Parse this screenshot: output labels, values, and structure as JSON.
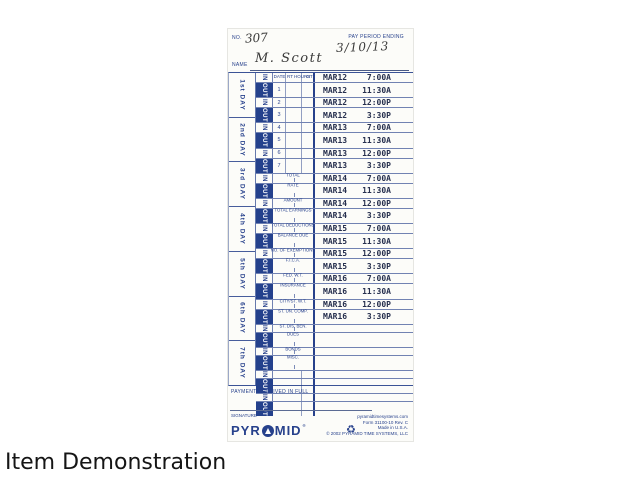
{
  "page": {
    "caption": "Item Demonstration"
  },
  "card": {
    "colors": {
      "print_blue": "#27418c",
      "out_block_blue": "#24418c",
      "stamp_ink": "#262f4e",
      "handwriting": "#3a3a3a",
      "card_background": "#fcfcf9"
    },
    "header": {
      "no_label": "NO.",
      "no_value": "307",
      "pay_period_label": "PAY PERIOD ENDING",
      "pay_period_value": "3/10/13",
      "name_label": "NAME",
      "name_value": "M. Scott"
    },
    "table": {
      "in_label": "IN",
      "out_label": "OUT",
      "column_headers": [
        "DATE",
        "RT",
        "HOURS",
        "OT"
      ],
      "day_labels": [
        "1st DAY",
        "2nd DAY",
        "3rd DAY",
        "4th DAY",
        "5th DAY",
        "6th DAY",
        "7th DAY"
      ],
      "rows": [
        {
          "io": "IN",
          "mid_type": "header",
          "mid": "",
          "stamp_date": "MAR12",
          "stamp_time": "7:00A"
        },
        {
          "io": "OUT",
          "mid_type": "num",
          "mid": "1",
          "stamp_date": "MAR12",
          "stamp_time": "11:30A"
        },
        {
          "io": "IN",
          "mid_type": "num",
          "mid": "2",
          "stamp_date": "MAR12",
          "stamp_time": "12:00P"
        },
        {
          "io": "OUT",
          "mid_type": "num",
          "mid": "3",
          "stamp_date": "MAR12",
          "stamp_time": "3:30P"
        },
        {
          "io": "IN",
          "mid_type": "num",
          "mid": "4",
          "stamp_date": "MAR13",
          "stamp_time": "7:00A"
        },
        {
          "io": "OUT",
          "mid_type": "num",
          "mid": "5",
          "stamp_date": "MAR13",
          "stamp_time": "11:30A"
        },
        {
          "io": "IN",
          "mid_type": "num",
          "mid": "6",
          "stamp_date": "MAR13",
          "stamp_time": "12:00P"
        },
        {
          "io": "OUT",
          "mid_type": "num",
          "mid": "7",
          "stamp_date": "MAR13",
          "stamp_time": "3:30P"
        },
        {
          "io": "IN",
          "mid_type": "label",
          "mid": "TOTAL",
          "stamp_date": "MAR14",
          "stamp_time": "7:00A"
        },
        {
          "io": "OUT",
          "mid_type": "label",
          "mid": "RATE",
          "stamp_date": "MAR14",
          "stamp_time": "11:30A"
        },
        {
          "io": "IN",
          "mid_type": "label",
          "mid": "AMOUNT",
          "stamp_date": "MAR14",
          "stamp_time": "12:00P"
        },
        {
          "io": "OUT",
          "mid_type": "label",
          "mid": "TOTAL EARNINGS",
          "stamp_date": "MAR14",
          "stamp_time": "3:30P"
        },
        {
          "io": "IN",
          "mid_type": "label",
          "mid": "TOTAL DEDUCTIONS",
          "stamp_date": "MAR15",
          "stamp_time": "7:00A"
        },
        {
          "io": "OUT",
          "mid_type": "label",
          "mid": "BALANCE DUE",
          "stamp_date": "MAR15",
          "stamp_time": "11:30A"
        },
        {
          "io": "IN",
          "mid_type": "label",
          "mid": "NO. OF EXEMPTIONS",
          "stamp_date": "MAR15",
          "stamp_time": "12:00P"
        },
        {
          "io": "OUT",
          "mid_type": "label",
          "mid": "F.I.C.A.",
          "stamp_date": "MAR15",
          "stamp_time": "3:30P"
        },
        {
          "io": "IN",
          "mid_type": "label",
          "mid": "FED. W.T.",
          "stamp_date": "MAR16",
          "stamp_time": "7:00A"
        },
        {
          "io": "OUT",
          "mid_type": "label",
          "mid": "INSURANCE",
          "stamp_date": "MAR16",
          "stamp_time": "11:30A"
        },
        {
          "io": "IN",
          "mid_type": "label",
          "mid": "CITY/ST. W.T.",
          "stamp_date": "MAR16",
          "stamp_time": "12:00P"
        },
        {
          "io": "OUT",
          "mid_type": "label",
          "mid": "ST. UN. COMP.",
          "stamp_date": "MAR16",
          "stamp_time": "3:30P"
        },
        {
          "io": "IN",
          "mid_type": "label",
          "mid": "ST. DIS. BEN.",
          "stamp_date": "",
          "stamp_time": ""
        },
        {
          "io": "OUT",
          "mid_type": "label",
          "mid": "DUES",
          "stamp_date": "",
          "stamp_time": ""
        },
        {
          "io": "IN",
          "mid_type": "label",
          "mid": "BONDS",
          "stamp_date": "",
          "stamp_time": ""
        },
        {
          "io": "OUT",
          "mid_type": "label",
          "mid": "MISC.",
          "stamp_date": "",
          "stamp_time": ""
        },
        {
          "io": "IN",
          "mid_type": "blank",
          "mid": "",
          "stamp_date": "",
          "stamp_time": ""
        },
        {
          "io": "OUT",
          "mid_type": "blank",
          "mid": "",
          "stamp_date": "",
          "stamp_time": ""
        },
        {
          "io": "IN",
          "mid_type": "blank",
          "mid": "",
          "stamp_date": "",
          "stamp_time": ""
        },
        {
          "io": "OUT",
          "mid_type": "blank",
          "mid": "",
          "stamp_date": "",
          "stamp_time": ""
        }
      ]
    },
    "footer": {
      "payment_text": "PAYMENT RECEIVED IN FULL",
      "signature_label": "SIGNATURE",
      "brand_pre": "PYR",
      "brand_post": "MID",
      "brand_reg": "®",
      "recycle_icon": "♻",
      "fine_print": [
        "pyramidtimesystems.com",
        "Form 31100-10  Rev. C",
        "Made in U.S.A.",
        "© 2002 PYRAMID TIME SYSTEMS, LLC"
      ]
    }
  }
}
